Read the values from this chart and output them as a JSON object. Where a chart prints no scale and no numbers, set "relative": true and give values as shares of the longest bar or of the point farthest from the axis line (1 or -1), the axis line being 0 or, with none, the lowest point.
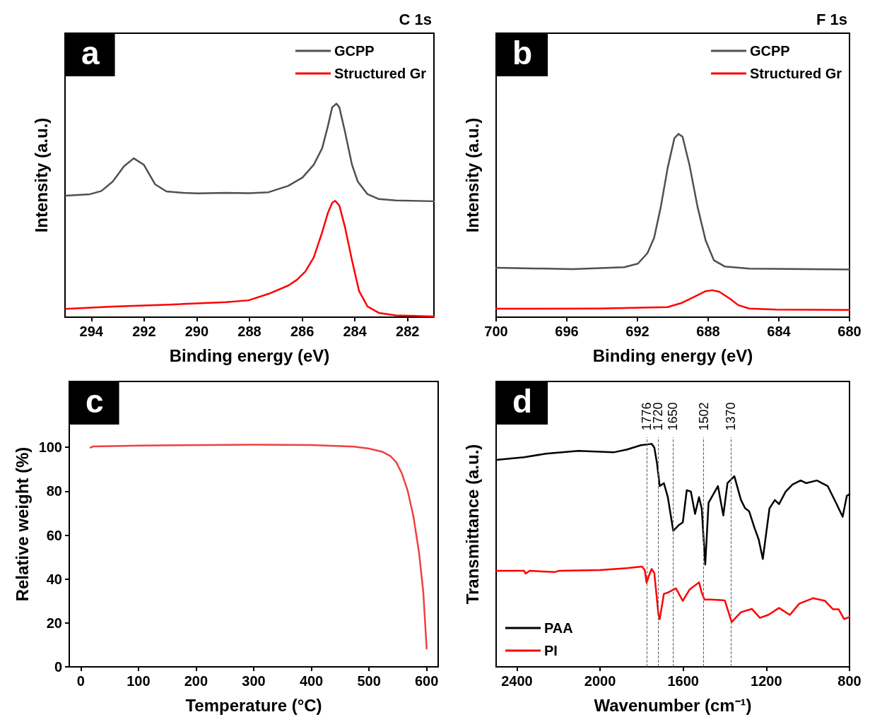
{
  "chart_data": [
    {
      "type": "line",
      "title": "a",
      "subtitle": "C 1s",
      "xlabel": "Binding energy (eV)",
      "ylabel": "Intensity (a.u.)",
      "relative": true,
      "xlim": [
        295,
        281
      ],
      "xticks": [
        294,
        292,
        290,
        288,
        286,
        284,
        282
      ],
      "tick_labels": "x",
      "grid": false,
      "legend": "top right",
      "marker": "none",
      "series": [
        {
          "name": "GCPP",
          "color": "#505050",
          "x": [
            294.97,
            294.05,
            293.62,
            293.19,
            292.76,
            292.39,
            292.01,
            291.58,
            291.15,
            290.51,
            289.97,
            288.89,
            288.03,
            287.28,
            286.53,
            285.99,
            285.56,
            285.24,
            285.02,
            284.86,
            284.7,
            284.59,
            284.38,
            284.11,
            283.89,
            283.52,
            283.09,
            282.44,
            281.0
          ],
          "values": [
            0.569,
            0.576,
            0.591,
            0.635,
            0.707,
            0.744,
            0.714,
            0.622,
            0.589,
            0.582,
            0.58,
            0.582,
            0.581,
            0.585,
            0.615,
            0.654,
            0.714,
            0.792,
            0.897,
            0.983,
            1.0,
            0.983,
            0.871,
            0.714,
            0.635,
            0.576,
            0.553,
            0.547,
            0.543
          ]
        },
        {
          "name": "Structured Gr",
          "color": "#ff0000",
          "x": [
            294.97,
            293.19,
            291.04,
            288.89,
            288.03,
            287.28,
            286.53,
            286.2,
            285.88,
            285.56,
            285.24,
            285.02,
            284.86,
            284.75,
            284.59,
            284.38,
            284.11,
            283.84,
            283.52,
            283.09,
            282.44,
            281.0
          ],
          "values": [
            0.039,
            0.05,
            0.059,
            0.07,
            0.079,
            0.109,
            0.148,
            0.175,
            0.214,
            0.28,
            0.398,
            0.49,
            0.536,
            0.545,
            0.523,
            0.424,
            0.266,
            0.122,
            0.05,
            0.02,
            0.008,
            0.003
          ]
        }
      ]
    },
    {
      "type": "line",
      "title": "b",
      "subtitle": "F 1s",
      "xlabel": "Binding energy (eV)",
      "ylabel": "Intensity (a.u.)",
      "relative": true,
      "xlim": [
        700,
        680
      ],
      "xticks": [
        700,
        696,
        692,
        688,
        684,
        680
      ],
      "tick_labels": "x",
      "grid": false,
      "legend": "top right",
      "marker": "none",
      "series": [
        {
          "name": "GCPP",
          "color": "#505050",
          "x": [
            700,
            695.67,
            692.75,
            691.98,
            691.44,
            691.06,
            690.68,
            690.29,
            689.91,
            689.68,
            689.45,
            689.06,
            688.6,
            688.14,
            687.68,
            687.07,
            685.68,
            680
          ],
          "values": [
            0.27,
            0.262,
            0.273,
            0.292,
            0.349,
            0.433,
            0.602,
            0.816,
            0.977,
            1.0,
            0.985,
            0.832,
            0.602,
            0.418,
            0.311,
            0.277,
            0.265,
            0.26
          ]
        },
        {
          "name": "Structured Gr",
          "color": "#ff0000",
          "x": [
            700,
            694.13,
            690.29,
            689.52,
            688.76,
            688.14,
            687.76,
            687.37,
            686.76,
            686.3,
            685.68,
            684.15,
            680
          ],
          "values": [
            0.046,
            0.047,
            0.055,
            0.077,
            0.112,
            0.142,
            0.147,
            0.139,
            0.1,
            0.066,
            0.047,
            0.041,
            0.04
          ]
        }
      ]
    },
    {
      "type": "line",
      "title": "c",
      "xlabel": "Temperature (°C)",
      "ylabel": "Relative weight (%)",
      "xlim": [
        -20,
        620
      ],
      "xticks": [
        0,
        100,
        200,
        300,
        400,
        500,
        600
      ],
      "ylim": [
        0,
        130
      ],
      "yticks": [
        0,
        20,
        40,
        60,
        80,
        100
      ],
      "grid": false,
      "marker": "none",
      "series": [
        {
          "color": "#f04040",
          "x": [
            16.7,
            21.6,
            105,
            301.7,
            400,
            473.7,
            498.3,
            522.9,
            537.6,
            547.4,
            557.2,
            567,
            576.9,
            586.7,
            594.1,
            600
          ],
          "values": [
            99.9,
            100.4,
            100.8,
            101.2,
            101.0,
            100.3,
            99.5,
            98.0,
            95.9,
            93.1,
            88.0,
            80.3,
            68.8,
            52.2,
            34.3,
            8.3
          ]
        }
      ]
    },
    {
      "type": "line",
      "title": "d",
      "xlabel": "Wavenumber (cm⁻¹)",
      "ylabel": "Transmittance (a.u.)",
      "relative": true,
      "xlim": [
        2500,
        800
      ],
      "xticks": [
        2400,
        2000,
        1600,
        1200,
        800
      ],
      "tick_labels": "x",
      "grid": false,
      "legend": "bottom left",
      "marker": "none",
      "ref_lines": [
        {
          "axis": "x",
          "value": 1776,
          "label": "1776",
          "line_style": "dashed",
          "color": "#606060"
        },
        {
          "axis": "x",
          "value": 1720,
          "label": "1720",
          "line_style": "dashed",
          "color": "#606060"
        },
        {
          "axis": "x",
          "value": 1650,
          "label": "1650",
          "line_style": "dashed",
          "color": "#606060"
        },
        {
          "axis": "x",
          "value": 1502,
          "label": "1502",
          "line_style": "dashed",
          "color": "#606060"
        },
        {
          "axis": "x",
          "value": 1370,
          "label": "1370",
          "line_style": "dashed",
          "color": "#606060"
        }
      ],
      "series": [
        {
          "name": "PAA",
          "color": "#000000",
          "x": [
            2498,
            2365,
            2261,
            2104,
            1935,
            1869,
            1804,
            1752,
            1739,
            1726,
            1713,
            1693,
            1674,
            1648,
            1622,
            1602,
            1583,
            1563,
            1543,
            1524,
            1511,
            1494,
            1478,
            1433,
            1407,
            1387,
            1354,
            1322,
            1302,
            1283,
            1257,
            1237,
            1217,
            1185,
            1159,
            1139,
            1107,
            1074,
            1035,
            1009,
            957,
            905,
            865,
            833,
            813,
            800
          ],
          "values": [
            0.928,
            0.94,
            0.956,
            0.969,
            0.962,
            0.975,
            0.994,
            1.0,
            0.984,
            0.912,
            0.811,
            0.824,
            0.761,
            0.61,
            0.635,
            0.648,
            0.792,
            0.786,
            0.686,
            0.761,
            0.711,
            0.459,
            0.736,
            0.811,
            0.679,
            0.824,
            0.855,
            0.748,
            0.711,
            0.698,
            0.623,
            0.572,
            0.484,
            0.711,
            0.748,
            0.73,
            0.786,
            0.818,
            0.836,
            0.824,
            0.836,
            0.811,
            0.736,
            0.673,
            0.767,
            0.774
          ]
        },
        {
          "name": "PI",
          "color": "#ff0000",
          "x": [
            2498,
            2365,
            2358,
            2339,
            2221,
            2195,
            2000,
            1869,
            1798,
            1785,
            1776,
            1765,
            1752,
            1739,
            1719,
            1713,
            1693,
            1674,
            1635,
            1602,
            1570,
            1524,
            1511,
            1498,
            1465,
            1400,
            1367,
            1322,
            1270,
            1231,
            1191,
            1139,
            1087,
            1042,
            976,
            918,
            879,
            852,
            826,
            800
          ],
          "values": [
            0.431,
            0.431,
            0.418,
            0.431,
            0.425,
            0.431,
            0.434,
            0.443,
            0.45,
            0.434,
            0.377,
            0.409,
            0.439,
            0.421,
            0.233,
            0.214,
            0.327,
            0.333,
            0.352,
            0.296,
            0.346,
            0.379,
            0.333,
            0.302,
            0.302,
            0.298,
            0.201,
            0.245,
            0.26,
            0.22,
            0.233,
            0.264,
            0.233,
            0.283,
            0.308,
            0.296,
            0.258,
            0.258,
            0.214,
            0.224
          ]
        }
      ]
    }
  ]
}
